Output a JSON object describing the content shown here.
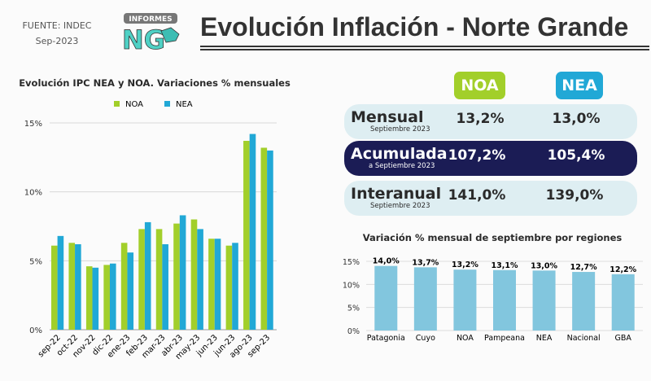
{
  "header": {
    "source": "FUENTE: INDEC",
    "date": "Sep-2023",
    "logo_text": "INFORMES NG",
    "title": "Evolución Inflación - Norte Grande"
  },
  "colors": {
    "noa": "#a2cf2a",
    "nea": "#21a8d6",
    "dark_row": "#1b1c55",
    "light_row": "#deeef2",
    "region_bar": "#82c6de"
  },
  "summary": {
    "columns": [
      "NOA",
      "NEA"
    ],
    "rows": [
      {
        "label": "Mensual",
        "sub": "Septiembre 2023",
        "noa": "13,2%",
        "nea": "13,0%"
      },
      {
        "label": "Acumulada",
        "sub": "a Septiembre 2023",
        "noa": "107,2%",
        "nea": "105,4%"
      },
      {
        "label": "Interanual",
        "sub": "Septiembre 2023",
        "noa": "141,0%",
        "nea": "139,0%"
      }
    ]
  },
  "chart_data": [
    {
      "type": "bar",
      "title": "Evolución IPC NEA y NOA. Variaciones % mensuales",
      "categories": [
        "sep-22",
        "oct-22",
        "nov-22",
        "dic-22",
        "ene-23",
        "feb-23",
        "mar-23",
        "abr-23",
        "may-23",
        "jun-23",
        "jun-23",
        "ago-23",
        "sep-23"
      ],
      "series": [
        {
          "name": "NOA",
          "color": "#a2cf2a",
          "values": [
            6.1,
            6.3,
            4.6,
            4.7,
            6.3,
            7.3,
            7.3,
            7.7,
            8.0,
            6.6,
            6.1,
            13.7,
            13.2
          ]
        },
        {
          "name": "NEA",
          "color": "#21a8d6",
          "values": [
            6.8,
            6.2,
            4.5,
            4.8,
            5.6,
            7.8,
            6.2,
            8.3,
            7.3,
            6.6,
            6.3,
            14.2,
            13.0
          ]
        }
      ],
      "yticks": [
        "0%",
        "5%",
        "10%",
        "15%"
      ],
      "ylim": [
        0,
        15
      ],
      "grid": true,
      "legend": "top"
    },
    {
      "type": "bar",
      "title": "Variación % mensual de septiembre por regiones",
      "categories": [
        "Patagonia",
        "Cuyo",
        "NOA",
        "Pampeana",
        "NEA",
        "Nacional",
        "GBA"
      ],
      "values": [
        14.0,
        13.7,
        13.2,
        13.1,
        13.0,
        12.7,
        12.2
      ],
      "labels": [
        "14,0%",
        "13,7%",
        "13,2%",
        "13,1%",
        "13,0%",
        "12,7%",
        "12,2%"
      ],
      "yticks": [
        "0%",
        "5%",
        "10%",
        "15%"
      ],
      "ylim": [
        0,
        15
      ],
      "grid": true
    }
  ]
}
